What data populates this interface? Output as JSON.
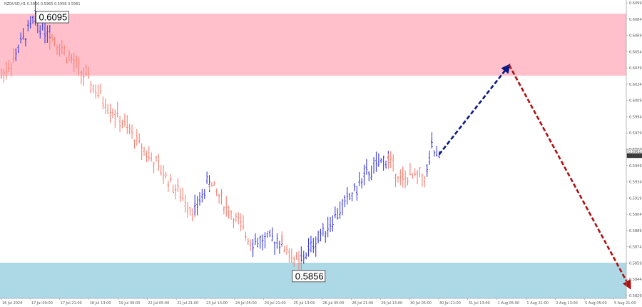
{
  "chart_data": {
    "type": "bar",
    "title": "NZDUSD,H1  0.5960 0.5965 0.5958 0.5961",
    "ylim": [
      0.5828,
      0.6112
    ],
    "y_ticks": [
      "0.6099",
      "0.6084",
      "0.6069",
      "0.6054",
      "0.6039",
      "0.6024",
      "0.6009",
      "0.5994",
      "0.5979",
      "0.5964",
      "0.5949",
      "0.5934",
      "0.5919",
      "0.5904",
      "0.5889",
      "0.5874",
      "0.5859",
      "0.5844",
      "0.5829"
    ],
    "x_ticks": [
      "16 Jul 2024",
      "17 Jul 09:00",
      "17 Jul 21:00",
      "18 Jul 13:00",
      "19 Jul 09:00",
      "22 Jul 05:00",
      "22 Jul 21:00",
      "23 Jul 13:00",
      "24 Jul 05:00",
      "24 Jul 21:00",
      "25 Jul 13:00",
      "26 Jul 05:00",
      "26 Jul 21:00",
      "29 Jul 13:00",
      "30 Jul 05:00",
      "30 Jul 21:00",
      "31 Jul 13:00",
      "1 Aug 05:00",
      "1 Aug 21:00",
      "2 Aug 13:00",
      "5 Aug 05:00",
      "5 Aug 21:00"
    ],
    "zones": [
      {
        "name": "resistance",
        "from": 0.604,
        "to": 0.6099,
        "color": "#FFC0CB"
      },
      {
        "name": "support",
        "from": 0.5828,
        "to": 0.5862,
        "color": "#ADD8E6"
      }
    ],
    "price_labels": [
      {
        "text": "0.6095",
        "value": 0.6095,
        "bar": 14
      },
      {
        "text": "0.5856",
        "value": 0.5856,
        "bar": 120
      }
    ],
    "current_price_labels": [
      "0.5961",
      "0.5958"
    ],
    "segments": [
      {
        "from_bar": 0,
        "to_bar": 6,
        "start": 0.604,
        "end": 0.606,
        "color": "#FA8072"
      },
      {
        "from_bar": 6,
        "to_bar": 14,
        "start": 0.6062,
        "end": 0.6095,
        "color": "#3A3AE0"
      },
      {
        "from_bar": 14,
        "to_bar": 20,
        "start": 0.6092,
        "end": 0.6082,
        "color": "#3A3AE0"
      },
      {
        "from_bar": 20,
        "to_bar": 80,
        "start": 0.608,
        "end": 0.591,
        "color": "#FA8072"
      },
      {
        "from_bar": 80,
        "to_bar": 86,
        "start": 0.5912,
        "end": 0.594,
        "color": "#3A3AE0"
      },
      {
        "from_bar": 86,
        "to_bar": 104,
        "start": 0.5938,
        "end": 0.588,
        "color": "#FA8072"
      },
      {
        "from_bar": 104,
        "to_bar": 116,
        "start": 0.5882,
        "end": 0.5884,
        "color": "#3A3AE0"
      },
      {
        "from_bar": 116,
        "to_bar": 124,
        "start": 0.588,
        "end": 0.5858,
        "color": "#FA8072"
      },
      {
        "from_bar": 124,
        "to_bar": 150,
        "start": 0.5865,
        "end": 0.5942,
        "color": "#3A3AE0"
      },
      {
        "from_bar": 150,
        "to_bar": 160,
        "start": 0.5945,
        "end": 0.5962,
        "color": "#3A3AE0"
      },
      {
        "from_bar": 160,
        "to_bar": 166,
        "start": 0.596,
        "end": 0.594,
        "color": "#FA8072"
      },
      {
        "from_bar": 166,
        "to_bar": 176,
        "start": 0.5942,
        "end": 0.5945,
        "color": "#FA8072"
      },
      {
        "from_bar": 176,
        "to_bar": 178,
        "start": 0.595,
        "end": 0.5972,
        "color": "#3A3AE0"
      },
      {
        "from_bar": 178,
        "to_bar": 181,
        "start": 0.597,
        "end": 0.596,
        "color": "#3A3AE0"
      }
    ],
    "forecast": [
      {
        "from": {
          "bar": 181,
          "value": 0.5965
        },
        "to": {
          "bar": 210,
          "value": 0.605
        },
        "color": "#0A1A80",
        "style": "dashed"
      },
      {
        "from": {
          "bar": 210,
          "value": 0.605
        },
        "to": {
          "bar": 260,
          "value": 0.5838
        },
        "color": "#B01010",
        "style": "dashed"
      }
    ],
    "bar_count": 262
  }
}
